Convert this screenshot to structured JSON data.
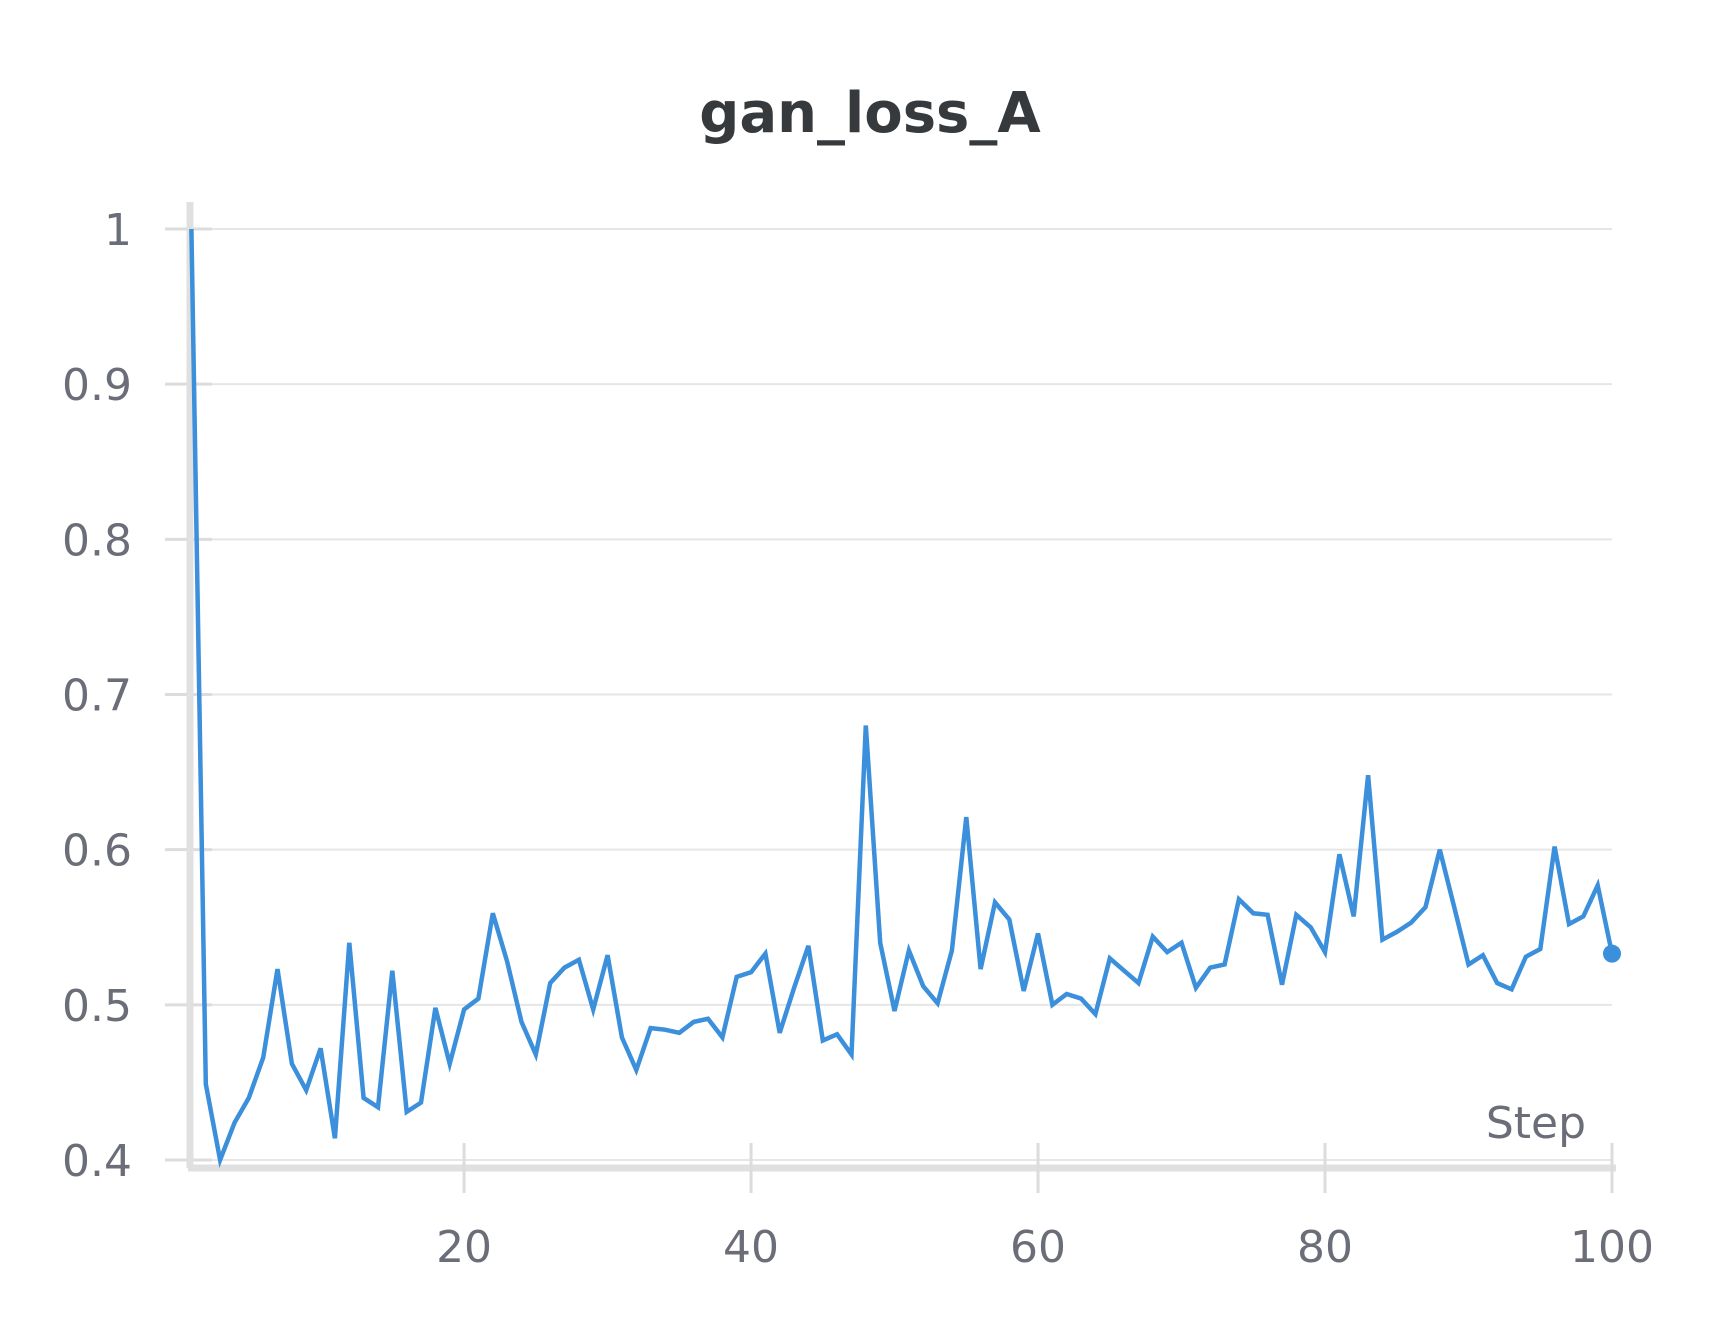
{
  "chart_data": {
    "type": "line",
    "title": "gan_loss_A",
    "xlabel": "Step",
    "ylabel": "",
    "xlim": [
      0.9,
      100
    ],
    "ylim": [
      0.4,
      1.0
    ],
    "x_ticks": [
      "20",
      "40",
      "60",
      "80",
      "100"
    ],
    "x_tick_values": [
      20,
      40,
      60,
      80,
      100
    ],
    "y_ticks": [
      "0.4",
      "0.5",
      "0.6",
      "0.7",
      "0.8",
      "0.9",
      "1"
    ],
    "y_tick_values": [
      0.4,
      0.5,
      0.6,
      0.7,
      0.8,
      0.9,
      1.0
    ],
    "grid": true,
    "legend": "none",
    "color": "#3b8fdb",
    "series": [
      {
        "x": [
          1,
          2,
          3,
          4,
          5,
          6,
          7,
          8,
          9,
          10,
          11,
          12,
          13,
          14,
          15,
          16,
          17,
          18,
          19,
          20,
          21,
          22,
          23,
          24,
          25,
          26,
          27,
          28,
          29,
          30,
          31,
          32,
          33,
          34,
          35,
          36,
          37,
          38,
          39,
          40,
          41,
          42,
          43,
          44,
          45,
          46,
          47,
          48,
          49,
          50,
          51,
          52,
          53,
          54,
          55,
          56,
          57,
          58,
          59,
          60,
          61,
          62,
          63,
          64,
          65,
          66,
          67,
          68,
          69,
          70,
          71,
          72,
          73,
          74,
          75,
          76,
          77,
          78,
          79,
          80,
          81,
          82,
          83,
          84,
          85,
          86,
          87,
          88,
          89,
          90,
          91,
          92,
          93,
          94,
          95,
          96,
          97,
          98,
          99,
          100
        ],
        "values": [
          1.0,
          0.449,
          0.397,
          0.424,
          0.44,
          0.466,
          0.523,
          0.462,
          0.445,
          0.472,
          0.414,
          0.54,
          0.44,
          0.434,
          0.522,
          0.431,
          0.437,
          0.498,
          0.462,
          0.497,
          0.504,
          0.559,
          0.528,
          0.489,
          0.468,
          0.514,
          0.524,
          0.529,
          0.497,
          0.532,
          0.479,
          0.458,
          0.485,
          0.484,
          0.482,
          0.489,
          0.491,
          0.479,
          0.518,
          0.521,
          0.533,
          0.482,
          0.511,
          0.538,
          0.477,
          0.481,
          0.468,
          0.68,
          0.54,
          0.496,
          0.535,
          0.512,
          0.501,
          0.535,
          0.621,
          0.523,
          0.566,
          0.555,
          0.509,
          0.546,
          0.5,
          0.507,
          0.504,
          0.494,
          0.53,
          0.522,
          0.514,
          0.544,
          0.534,
          0.54,
          0.511,
          0.524,
          0.526,
          0.568,
          0.559,
          0.558,
          0.513,
          0.558,
          0.55,
          0.534,
          0.597,
          0.557,
          0.648,
          0.542,
          0.547,
          0.553,
          0.563,
          0.6,
          0.563,
          0.526,
          0.532,
          0.514,
          0.51,
          0.531,
          0.536,
          0.602,
          0.552,
          0.557,
          0.577,
          0.533
        ]
      }
    ]
  }
}
